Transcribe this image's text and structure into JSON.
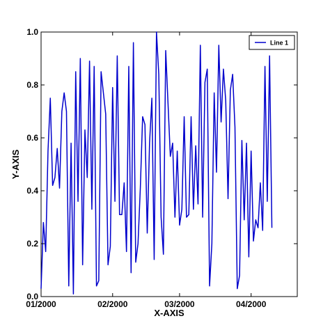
{
  "chart_data": {
    "type": "line",
    "xlabel": "X-AXIS",
    "ylabel": "Y-AXIS",
    "x_start": "2000-01-01",
    "x_end": "2000-04-21",
    "xlim": [
      "2000-01-01",
      "2000-04-21"
    ],
    "ylim": [
      0.0,
      1.0
    ],
    "x_ticks": [
      {
        "date": "2000-01-01",
        "label": "01/2000"
      },
      {
        "date": "2000-02-01",
        "label": "02/2000"
      },
      {
        "date": "2000-03-01",
        "label": "03/2000"
      },
      {
        "date": "2000-04-01",
        "label": "04/2000"
      }
    ],
    "y_ticks": [
      {
        "value": 0.0,
        "label": "0.0"
      },
      {
        "value": 0.2,
        "label": "0.2"
      },
      {
        "value": 0.4,
        "label": "0.4"
      },
      {
        "value": 0.6,
        "label": "0.6"
      },
      {
        "value": 0.8,
        "label": "0.8"
      },
      {
        "value": 1.0,
        "label": "1.0"
      }
    ],
    "grid": false,
    "legend": {
      "placement": "top-right"
    },
    "series": [
      {
        "name": "Line 1",
        "color": "#0000cc",
        "points": [
          [
            "2000-01-01",
            0.03
          ],
          [
            "2000-01-02",
            0.28
          ],
          [
            "2000-01-03",
            0.17
          ],
          [
            "2000-01-04",
            0.55
          ],
          [
            "2000-01-05",
            0.75
          ],
          [
            "2000-01-06",
            0.42
          ],
          [
            "2000-01-07",
            0.45
          ],
          [
            "2000-01-08",
            0.56
          ],
          [
            "2000-01-09",
            0.41
          ],
          [
            "2000-01-10",
            0.7
          ],
          [
            "2000-01-11",
            0.77
          ],
          [
            "2000-01-12",
            0.7
          ],
          [
            "2000-01-13",
            0.04
          ],
          [
            "2000-01-14",
            0.58
          ],
          [
            "2000-01-15",
            0.01
          ],
          [
            "2000-01-16",
            0.85
          ],
          [
            "2000-01-17",
            0.36
          ],
          [
            "2000-01-18",
            0.9
          ],
          [
            "2000-01-19",
            0.12
          ],
          [
            "2000-01-20",
            0.63
          ],
          [
            "2000-01-21",
            0.45
          ],
          [
            "2000-01-22",
            0.89
          ],
          [
            "2000-01-23",
            0.33
          ],
          [
            "2000-01-24",
            0.87
          ],
          [
            "2000-01-25",
            0.04
          ],
          [
            "2000-01-26",
            0.06
          ],
          [
            "2000-01-27",
            0.85
          ],
          [
            "2000-01-28",
            0.77
          ],
          [
            "2000-01-29",
            0.69
          ],
          [
            "2000-01-30",
            0.12
          ],
          [
            "2000-01-31",
            0.19
          ],
          [
            "2000-02-01",
            0.79
          ],
          [
            "2000-02-02",
            0.36
          ],
          [
            "2000-02-03",
            0.91
          ],
          [
            "2000-02-04",
            0.31
          ],
          [
            "2000-02-05",
            0.31
          ],
          [
            "2000-02-06",
            0.43
          ],
          [
            "2000-02-07",
            0.17
          ],
          [
            "2000-02-08",
            0.87
          ],
          [
            "2000-02-09",
            0.09
          ],
          [
            "2000-02-10",
            0.96
          ],
          [
            "2000-02-11",
            0.13
          ],
          [
            "2000-02-12",
            0.2
          ],
          [
            "2000-02-13",
            0.41
          ],
          [
            "2000-02-14",
            0.68
          ],
          [
            "2000-02-15",
            0.65
          ],
          [
            "2000-02-16",
            0.24
          ],
          [
            "2000-02-17",
            0.58
          ],
          [
            "2000-02-18",
            0.75
          ],
          [
            "2000-02-19",
            0.14
          ],
          [
            "2000-02-20",
            1.0
          ],
          [
            "2000-02-21",
            0.84
          ],
          [
            "2000-02-22",
            0.3
          ],
          [
            "2000-02-23",
            0.16
          ],
          [
            "2000-02-24",
            0.93
          ],
          [
            "2000-02-25",
            0.73
          ],
          [
            "2000-02-26",
            0.53
          ],
          [
            "2000-02-27",
            0.58
          ],
          [
            "2000-02-28",
            0.3
          ],
          [
            "2000-02-29",
            0.55
          ],
          [
            "2000-03-01",
            0.27
          ],
          [
            "2000-03-02",
            0.33
          ],
          [
            "2000-03-03",
            0.68
          ],
          [
            "2000-03-04",
            0.3
          ],
          [
            "2000-03-05",
            0.31
          ],
          [
            "2000-03-06",
            0.68
          ],
          [
            "2000-03-07",
            0.33
          ],
          [
            "2000-03-08",
            0.57
          ],
          [
            "2000-03-09",
            0.35
          ],
          [
            "2000-03-10",
            0.95
          ],
          [
            "2000-03-11",
            0.3
          ],
          [
            "2000-03-12",
            0.81
          ],
          [
            "2000-03-13",
            0.86
          ],
          [
            "2000-03-14",
            0.04
          ],
          [
            "2000-03-15",
            0.2
          ],
          [
            "2000-03-16",
            0.77
          ],
          [
            "2000-03-17",
            0.47
          ],
          [
            "2000-03-18",
            0.95
          ],
          [
            "2000-03-19",
            0.66
          ],
          [
            "2000-03-20",
            0.86
          ],
          [
            "2000-03-21",
            0.74
          ],
          [
            "2000-03-22",
            0.37
          ],
          [
            "2000-03-23",
            0.78
          ],
          [
            "2000-03-24",
            0.84
          ],
          [
            "2000-03-25",
            0.64
          ],
          [
            "2000-03-26",
            0.03
          ],
          [
            "2000-03-27",
            0.08
          ],
          [
            "2000-03-28",
            0.59
          ],
          [
            "2000-03-29",
            0.29
          ],
          [
            "2000-03-30",
            0.58
          ],
          [
            "2000-03-31",
            0.15
          ],
          [
            "2000-04-01",
            0.55
          ],
          [
            "2000-04-02",
            0.21
          ],
          [
            "2000-04-03",
            0.29
          ],
          [
            "2000-04-04",
            0.26
          ],
          [
            "2000-04-05",
            0.43
          ],
          [
            "2000-04-06",
            0.25
          ],
          [
            "2000-04-07",
            0.87
          ],
          [
            "2000-04-08",
            0.36
          ],
          [
            "2000-04-09",
            0.91
          ],
          [
            "2000-04-10",
            0.26
          ]
        ]
      }
    ]
  }
}
